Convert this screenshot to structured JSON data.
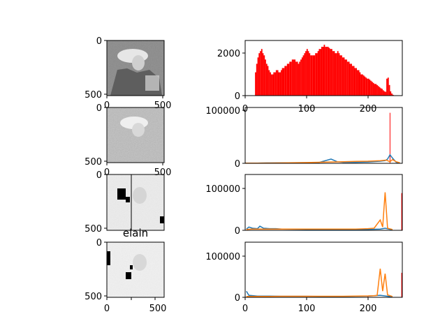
{
  "chart_data": [
    {
      "type": "image",
      "image": "grayscale-portrait",
      "xticks": [],
      "yticks": [
        "0",
        "500"
      ]
    },
    {
      "type": "histogram",
      "xlim": [
        0,
        256
      ],
      "ylim": [
        0,
        2600
      ],
      "xticks": [],
      "yticks": [
        "0",
        "2000"
      ],
      "series": [
        {
          "color": "#ff0000",
          "bins": [
            [
              16,
              1100
            ],
            [
              18,
              1500
            ],
            [
              20,
              1800
            ],
            [
              22,
              2000
            ],
            [
              24,
              2100
            ],
            [
              26,
              2200
            ],
            [
              28,
              2000
            ],
            [
              30,
              1900
            ],
            [
              32,
              1700
            ],
            [
              34,
              1500
            ],
            [
              36,
              1400
            ],
            [
              38,
              1200
            ],
            [
              40,
              1100
            ],
            [
              42,
              1000
            ],
            [
              44,
              1000
            ],
            [
              46,
              1100
            ],
            [
              48,
              1100
            ],
            [
              50,
              1200
            ],
            [
              52,
              1200
            ],
            [
              54,
              1100
            ],
            [
              56,
              1100
            ],
            [
              58,
              1200
            ],
            [
              60,
              1300
            ],
            [
              62,
              1300
            ],
            [
              64,
              1400
            ],
            [
              66,
              1400
            ],
            [
              68,
              1500
            ],
            [
              70,
              1500
            ],
            [
              72,
              1600
            ],
            [
              74,
              1600
            ],
            [
              76,
              1700
            ],
            [
              78,
              1700
            ],
            [
              80,
              1700
            ],
            [
              82,
              1600
            ],
            [
              84,
              1600
            ],
            [
              86,
              1500
            ],
            [
              88,
              1600
            ],
            [
              90,
              1700
            ],
            [
              92,
              1800
            ],
            [
              94,
              1900
            ],
            [
              96,
              2000
            ],
            [
              98,
              2100
            ],
            [
              100,
              2200
            ],
            [
              102,
              2100
            ],
            [
              104,
              2000
            ],
            [
              106,
              1900
            ],
            [
              108,
              1900
            ],
            [
              110,
              1900
            ],
            [
              112,
              1900
            ],
            [
              114,
              2000
            ],
            [
              116,
              2000
            ],
            [
              118,
              2100
            ],
            [
              120,
              2200
            ],
            [
              122,
              2200
            ],
            [
              124,
              2300
            ],
            [
              126,
              2300
            ],
            [
              128,
              2400
            ],
            [
              130,
              2300
            ],
            [
              132,
              2300
            ],
            [
              134,
              2300
            ],
            [
              136,
              2250
            ],
            [
              138,
              2200
            ],
            [
              140,
              2200
            ],
            [
              142,
              2100
            ],
            [
              144,
              2100
            ],
            [
              146,
              2000
            ],
            [
              148,
              2000
            ],
            [
              150,
              2100
            ],
            [
              152,
              2000
            ],
            [
              154,
              1900
            ],
            [
              156,
              1900
            ],
            [
              158,
              1800
            ],
            [
              160,
              1800
            ],
            [
              162,
              1700
            ],
            [
              164,
              1700
            ],
            [
              166,
              1600
            ],
            [
              168,
              1600
            ],
            [
              170,
              1500
            ],
            [
              172,
              1500
            ],
            [
              174,
              1400
            ],
            [
              176,
              1400
            ],
            [
              178,
              1300
            ],
            [
              180,
              1300
            ],
            [
              182,
              1200
            ],
            [
              184,
              1200
            ],
            [
              186,
              1100
            ],
            [
              188,
              1000
            ],
            [
              190,
              1000
            ],
            [
              192,
              950
            ],
            [
              194,
              900
            ],
            [
              196,
              850
            ],
            [
              198,
              800
            ],
            [
              200,
              800
            ],
            [
              202,
              750
            ],
            [
              204,
              700
            ],
            [
              206,
              650
            ],
            [
              208,
              600
            ],
            [
              210,
              550
            ],
            [
              212,
              550
            ],
            [
              214,
              500
            ],
            [
              216,
              450
            ],
            [
              218,
              400
            ],
            [
              220,
              350
            ],
            [
              222,
              320
            ],
            [
              224,
              250
            ],
            [
              226,
              200
            ],
            [
              228,
              180
            ],
            [
              230,
              800
            ],
            [
              232,
              850
            ],
            [
              234,
              500
            ],
            [
              236,
              200
            ],
            [
              238,
              100
            ],
            [
              240,
              40
            ]
          ]
        }
      ]
    },
    {
      "type": "image",
      "image": "grayscale-portrait-noisy",
      "xticks": [
        "0",
        "500"
      ],
      "yticks": [
        "0",
        "500"
      ]
    },
    {
      "type": "histogram",
      "xlim": [
        0,
        256
      ],
      "ylim": [
        0,
        105000
      ],
      "xticks": [
        "0",
        "100",
        "200"
      ],
      "yticks": [
        "0",
        "100000"
      ],
      "series": [
        {
          "color": "#ff0000",
          "bins": [
            [
              236,
              95000
            ]
          ]
        },
        {
          "color": "#1f77b4",
          "bins": [
            [
              0,
              300
            ],
            [
              20,
              400
            ],
            [
              40,
              600
            ],
            [
              60,
              800
            ],
            [
              80,
              1000
            ],
            [
              100,
              1200
            ],
            [
              120,
              1500
            ],
            [
              140,
              8000
            ],
            [
              150,
              3000
            ],
            [
              160,
              2000
            ],
            [
              180,
              2000
            ],
            [
              200,
              2500
            ],
            [
              220,
              4000
            ],
            [
              228,
              5000
            ],
            [
              232,
              8000
            ],
            [
              236,
              16000
            ],
            [
              240,
              10000
            ],
            [
              246,
              2000
            ],
            [
              252,
              500
            ]
          ]
        },
        {
          "color": "#ff7f0e",
          "bins": [
            [
              0,
              200
            ],
            [
              20,
              300
            ],
            [
              40,
              500
            ],
            [
              60,
              800
            ],
            [
              80,
              1200
            ],
            [
              100,
              1500
            ],
            [
              120,
              2000
            ],
            [
              140,
              2500
            ],
            [
              160,
              3000
            ],
            [
              180,
              3500
            ],
            [
              200,
              4000
            ],
            [
              220,
              5000
            ],
            [
              230,
              6000
            ],
            [
              236,
              3000
            ],
            [
              240,
              7000
            ],
            [
              246,
              3000
            ],
            [
              252,
              1000
            ]
          ]
        }
      ]
    },
    {
      "type": "image",
      "image": "grayscale-portrait-high-contrast",
      "xticks": [
        "0",
        "500"
      ],
      "yticks": [
        "0",
        "500"
      ]
    },
    {
      "type": "histogram",
      "xlim": [
        0,
        256
      ],
      "ylim": [
        0,
        135000
      ],
      "xticks": [],
      "yticks": [
        "0",
        "100000"
      ],
      "series": [
        {
          "color": "#ff0000",
          "bins": [
            [
              175,
              4000
            ],
            [
              200,
              4000
            ],
            [
              255,
              90000
            ]
          ]
        },
        {
          "color": "#1f77b4",
          "bins": [
            [
              2,
              3000
            ],
            [
              6,
              8000
            ],
            [
              12,
              5000
            ],
            [
              20,
              4000
            ],
            [
              24,
              10000
            ],
            [
              30,
              5000
            ],
            [
              40,
              4000
            ],
            [
              50,
              4000
            ],
            [
              60,
              3000
            ],
            [
              80,
              2500
            ],
            [
              100,
              2000
            ],
            [
              120,
              2000
            ],
            [
              140,
              2000
            ],
            [
              160,
              1500
            ],
            [
              180,
              2000
            ],
            [
              200,
              2000
            ],
            [
              220,
              3000
            ],
            [
              228,
              5000
            ],
            [
              240,
              1000
            ]
          ]
        },
        {
          "color": "#ff7f0e",
          "bins": [
            [
              2,
              2000
            ],
            [
              10,
              3000
            ],
            [
              20,
              3000
            ],
            [
              40,
              3000
            ],
            [
              60,
              3000
            ],
            [
              80,
              3000
            ],
            [
              100,
              3000
            ],
            [
              120,
              3000
            ],
            [
              140,
              3000
            ],
            [
              160,
              3000
            ],
            [
              180,
              3000
            ],
            [
              200,
              4000
            ],
            [
              210,
              5000
            ],
            [
              220,
              25000
            ],
            [
              224,
              8000
            ],
            [
              228,
              92000
            ],
            [
              232,
              5000
            ],
            [
              240,
              2000
            ]
          ]
        }
      ]
    },
    {
      "type": "image",
      "title": "elain",
      "image": "grayscale-portrait-bright",
      "xticks": [
        "0",
        "200",
        "400"
      ],
      "yticks": [
        "0",
        "500"
      ]
    },
    {
      "type": "histogram",
      "xlim": [
        0,
        256
      ],
      "ylim": [
        0,
        135000
      ],
      "xticks": [
        "0",
        "100",
        "200"
      ],
      "yticks": [
        "0",
        "100000"
      ],
      "series": [
        {
          "color": "#ff0000",
          "bins": [
            [
              200,
              3000
            ],
            [
              255,
              60000
            ]
          ]
        },
        {
          "color": "#1f77b4",
          "bins": [
            [
              2,
              15000
            ],
            [
              6,
              5000
            ],
            [
              20,
              3000
            ],
            [
              40,
              3000
            ],
            [
              60,
              2500
            ],
            [
              80,
              2500
            ],
            [
              100,
              2500
            ],
            [
              120,
              2000
            ],
            [
              140,
              2000
            ],
            [
              160,
              2000
            ],
            [
              180,
              2500
            ],
            [
              200,
              3000
            ],
            [
              220,
              5000
            ],
            [
              230,
              3000
            ],
            [
              240,
              1000
            ]
          ]
        },
        {
          "color": "#ff7f0e",
          "bins": [
            [
              2,
              2000
            ],
            [
              20,
              2000
            ],
            [
              40,
              2000
            ],
            [
              60,
              2500
            ],
            [
              80,
              2500
            ],
            [
              100,
              2500
            ],
            [
              120,
              2500
            ],
            [
              140,
              2500
            ],
            [
              160,
              2500
            ],
            [
              180,
              3000
            ],
            [
              200,
              3500
            ],
            [
              210,
              4000
            ],
            [
              215,
              5000
            ],
            [
              220,
              70000
            ],
            [
              224,
              15000
            ],
            [
              228,
              58000
            ],
            [
              232,
              6000
            ],
            [
              240,
              2000
            ]
          ]
        }
      ]
    }
  ]
}
